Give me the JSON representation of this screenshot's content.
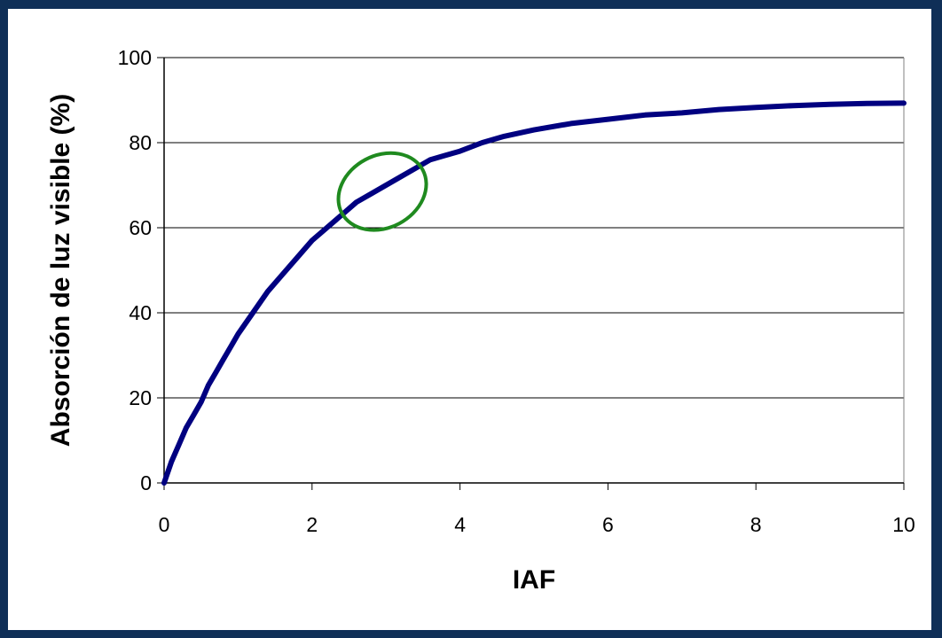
{
  "chart_data": {
    "type": "line",
    "xlabel": "IAF",
    "ylabel": "Absorción de luz visible (%)",
    "xlim": [
      0,
      10
    ],
    "ylim": [
      0,
      100
    ],
    "xticks": [
      "0",
      "2",
      "4",
      "6",
      "8",
      "10"
    ],
    "yticks": [
      "0",
      "20",
      "40",
      "60",
      "80",
      "100"
    ],
    "grid": "horizontal",
    "legend": "none",
    "series": [
      {
        "color": "#000080",
        "x": [
          0,
          0.1,
          0.2,
          0.3,
          0.4,
          0.5,
          0.6,
          0.7,
          0.8,
          0.9,
          1.0,
          1.2,
          1.4,
          1.6,
          1.8,
          2.0,
          2.2,
          2.4,
          2.6,
          2.8,
          3.0,
          3.2,
          3.4,
          3.6,
          3.8,
          4.0,
          4.3,
          4.6,
          5.0,
          5.5,
          6.0,
          6.5,
          7.0,
          7.5,
          8.0,
          8.5,
          9.0,
          9.5,
          10.0
        ],
        "y": [
          0,
          5,
          9,
          13,
          16,
          19,
          23,
          26,
          29,
          32,
          35,
          40,
          45,
          49,
          53,
          57,
          60,
          63,
          66,
          68,
          70,
          72,
          74,
          76,
          77,
          78,
          80,
          81.5,
          83,
          84.5,
          85.5,
          86.5,
          87,
          87.8,
          88.3,
          88.7,
          89,
          89.2,
          89.3
        ]
      }
    ],
    "annotations": [
      {
        "type": "ellipse",
        "color": "#1f8a1f",
        "cx": 2.95,
        "cy": 68.5,
        "rx": 0.62,
        "ry": 8.5
      }
    ]
  }
}
